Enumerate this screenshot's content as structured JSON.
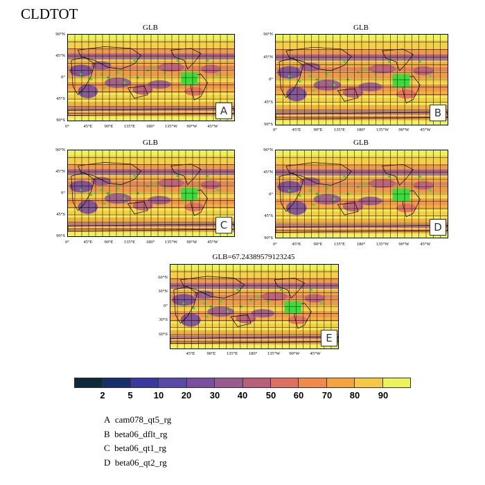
{
  "page_title": "CLDTOT",
  "colors": {
    "levels": [
      "#0c2a3c",
      "#142f6a",
      "#3a3a9e",
      "#5a4aa8",
      "#7a4e9c",
      "#995a8e",
      "#b85f7c",
      "#dd7060",
      "#ef8a48",
      "#f5a33c",
      "#f5c945",
      "#eaf35a"
    ],
    "highlight": "#3cdc3c"
  },
  "colorbar": {
    "labels": [
      "2",
      "5",
      "10",
      "20",
      "30",
      "40",
      "50",
      "60",
      "70",
      "80",
      "90"
    ]
  },
  "legend": [
    {
      "key": "A",
      "name": "cam078_qt5_rg"
    },
    {
      "key": "B",
      "name": "beta06_dflt_rg"
    },
    {
      "key": "C",
      "name": "beta06_qt1_rg"
    },
    {
      "key": "D",
      "name": "beta06_qt2_rg"
    }
  ],
  "panels": [
    {
      "title": "GLB",
      "tag": "A",
      "yticks": [
        "90°N",
        "45°N",
        "0°",
        "45°S",
        "90°S"
      ],
      "xticks": [
        "0°",
        "45°E",
        "90°E",
        "135°E",
        "180°",
        "135°W",
        "90°W",
        "45°W"
      ]
    },
    {
      "title": "GLB",
      "tag": "B",
      "yticks": [
        "90°N",
        "45°N",
        "0°",
        "45°S",
        "90°S"
      ],
      "xticks": [
        "0°",
        "45°E",
        "90°E",
        "135°E",
        "180°",
        "135°W",
        "90°W",
        "45°W"
      ]
    },
    {
      "title": "GLB",
      "tag": "C",
      "yticks": [
        "90°N",
        "45°N",
        "0°",
        "45°S",
        "90°S"
      ],
      "xticks": [
        "0°",
        "45°E",
        "90°E",
        "135°E",
        "180°",
        "135°W",
        "90°W",
        "45°W"
      ]
    },
    {
      "title": "GLB",
      "tag": "D",
      "yticks": [
        "90°N",
        "45°N",
        "0°",
        "45°S",
        "90°S"
      ],
      "xticks": [
        "0°",
        "45°E",
        "90°E",
        "135°E",
        "180°",
        "135°W",
        "90°W",
        "45°W"
      ]
    },
    {
      "title": "GLB=67.24389579123245",
      "tag": "E",
      "yticks": [
        "60°N",
        "30°N",
        "0°",
        "30°S",
        "60°S"
      ],
      "xticks": [
        "45°E",
        "90°E",
        "135°E",
        "180°",
        "135°W",
        "90°W",
        "45°W"
      ]
    }
  ],
  "chart_data": {
    "type": "heatmap",
    "variable": "CLDTOT",
    "panels": [
      {
        "label": "A",
        "title": "GLB"
      },
      {
        "label": "B",
        "title": "GLB"
      },
      {
        "label": "C",
        "title": "GLB"
      },
      {
        "label": "D",
        "title": "GLB"
      },
      {
        "label": "E",
        "title": "GLB=67.24389579123245",
        "global_mean": 67.24389579123245
      }
    ],
    "colorbar_levels": [
      2,
      5,
      10,
      20,
      30,
      40,
      50,
      60,
      70,
      80,
      90
    ],
    "lon_range": [
      0,
      360
    ],
    "lat_range": [
      -90,
      90
    ]
  }
}
